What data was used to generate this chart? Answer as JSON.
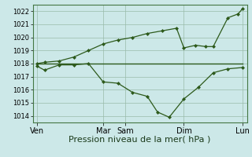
{
  "background_color": "#cce8e8",
  "grid_color": "#99bbaa",
  "line_color": "#2d5a1b",
  "marker_color": "#2d5a1b",
  "xlabel": "Pression niveau de la mer( hPa )",
  "xlabel_fontsize": 8,
  "ylim": [
    1013.5,
    1022.5
  ],
  "yticks": [
    1014,
    1015,
    1016,
    1017,
    1018,
    1019,
    1020,
    1021,
    1022
  ],
  "ytick_fontsize": 6,
  "xtick_fontsize": 7,
  "xlim": [
    -0.3,
    14.3
  ],
  "day_labels": [
    "Ven",
    "Mar",
    "Sam",
    "Dim",
    "Lun"
  ],
  "day_positions": [
    0,
    4.5,
    6,
    10,
    14
  ],
  "series_low": {
    "x": [
      0,
      0.5,
      1.5,
      2.5,
      3.5,
      4.5,
      5.5,
      6.5,
      7.5,
      8.2,
      9.0,
      10.0,
      11.0,
      12.0,
      13.0,
      14.0
    ],
    "y": [
      1017.8,
      1017.5,
      1017.9,
      1017.9,
      1018.0,
      1016.6,
      1016.5,
      1015.8,
      1015.5,
      1014.3,
      1013.9,
      1015.3,
      1016.2,
      1017.3,
      1017.6,
      1017.7
    ]
  },
  "series_high": {
    "x": [
      0,
      0.5,
      1.5,
      2.5,
      3.5,
      4.5,
      5.5,
      6.5,
      7.5,
      8.5,
      9.5,
      10.0,
      10.8,
      11.5,
      12.0,
      13.0,
      13.7,
      14.0
    ],
    "y": [
      1018.0,
      1018.1,
      1018.2,
      1018.5,
      1019.0,
      1019.5,
      1019.8,
      1020.0,
      1020.3,
      1020.5,
      1020.7,
      1019.2,
      1019.4,
      1019.3,
      1019.3,
      1021.5,
      1021.8,
      1022.2
    ]
  },
  "series_flat": {
    "x": [
      0,
      9.5,
      14.0
    ],
    "y": [
      1018.0,
      1018.0,
      1018.0
    ]
  }
}
